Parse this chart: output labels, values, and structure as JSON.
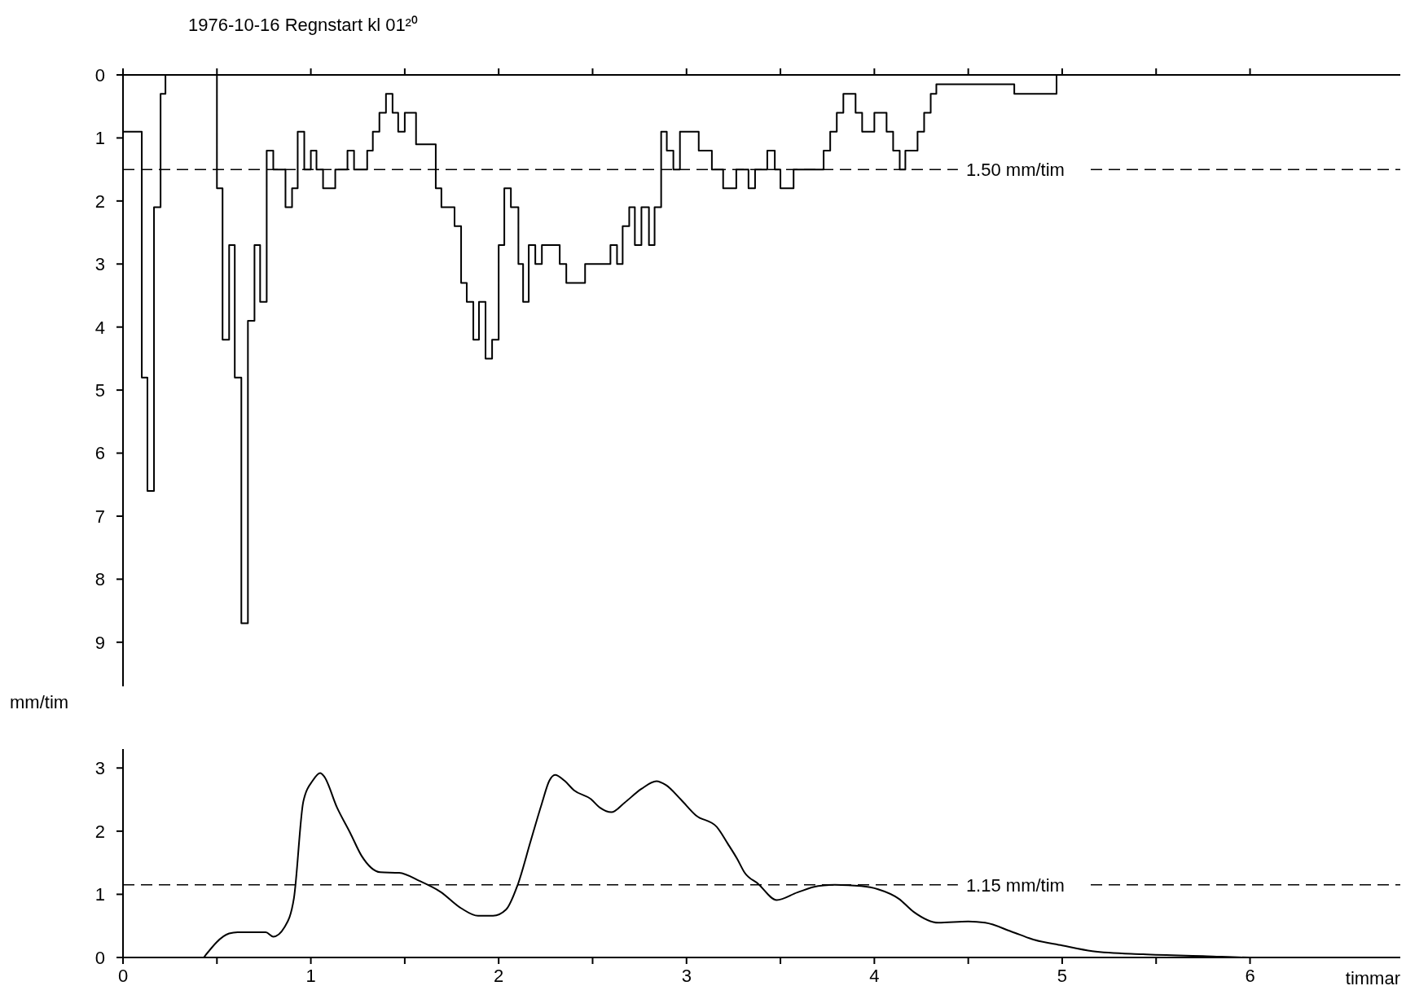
{
  "chart_data": [
    {
      "type": "step",
      "title": "1976-10-16   Regnstart   kl 01²⁰",
      "tick_labels": "y",
      "xlim": [
        0,
        6.8
      ],
      "xticks": [
        0,
        {
          "value": 0.5,
          "label": null
        },
        1,
        {
          "value": 1.5,
          "label": null
        },
        2,
        {
          "value": 2.5,
          "label": null
        },
        3,
        {
          "value": 3.5,
          "label": null
        },
        4,
        {
          "value": 4.5,
          "label": null
        },
        5,
        {
          "value": 5.5,
          "label": null
        },
        6
      ],
      "ylim": [
        9.7,
        0
      ],
      "yticks": [
        0,
        1,
        2,
        3,
        4,
        5,
        6,
        7,
        8,
        9
      ],
      "x": [
        0,
        0.1,
        0.13,
        0.165,
        0.2,
        0.226,
        0.5,
        0.53,
        0.565,
        0.595,
        0.63,
        0.665,
        0.7,
        0.73,
        0.765,
        0.8,
        0.865,
        0.9,
        0.93,
        0.965,
        1.0,
        1.03,
        1.065,
        1.13,
        1.195,
        1.23,
        1.3,
        1.33,
        1.365,
        1.4,
        1.435,
        1.465,
        1.5,
        1.56,
        1.665,
        1.695,
        1.765,
        1.8,
        1.83,
        1.865,
        1.895,
        1.93,
        1.965,
        2.0,
        2.03,
        2.065,
        2.105,
        2.13,
        2.16,
        2.195,
        2.23,
        2.325,
        2.36,
        2.46,
        2.595,
        2.63,
        2.66,
        2.695,
        2.725,
        2.76,
        2.8,
        2.83,
        2.865,
        2.895,
        2.93,
        2.965,
        3.065,
        3.135,
        3.195,
        3.265,
        3.33,
        3.365,
        3.43,
        3.47,
        3.5,
        3.57,
        3.73,
        3.765,
        3.8,
        3.835,
        3.9,
        3.935,
        4.0,
        4.065,
        4.1,
        4.135,
        4.165,
        4.23,
        4.265,
        4.3,
        4.33,
        4.745,
        4.97
      ],
      "series": [
        {
          "color": "#000000",
          "values": [
            0.9,
            4.8,
            6.6,
            2.1,
            0.3,
            0,
            1.8,
            4.2,
            2.7,
            4.8,
            8.7,
            3.9,
            2.7,
            3.6,
            1.2,
            1.5,
            2.1,
            1.8,
            0.9,
            1.5,
            1.2,
            1.5,
            1.8,
            1.5,
            1.2,
            1.5,
            1.2,
            0.9,
            0.6,
            0.3,
            0.6,
            0.9,
            0.6,
            1.1,
            1.8,
            2.1,
            2.4,
            3.3,
            3.6,
            4.2,
            3.6,
            4.5,
            4.2,
            2.7,
            1.8,
            2.1,
            3.0,
            3.6,
            2.7,
            3.0,
            2.7,
            3.0,
            3.3,
            3.0,
            2.7,
            3.0,
            2.4,
            2.1,
            2.7,
            2.1,
            2.7,
            2.1,
            0.9,
            1.2,
            1.5,
            0.9,
            1.2,
            1.5,
            1.8,
            1.5,
            1.8,
            1.5,
            1.2,
            1.5,
            1.8,
            1.5,
            1.2,
            0.9,
            0.6,
            0.3,
            0.6,
            0.9,
            0.6,
            0.9,
            1.2,
            1.5,
            1.2,
            0.9,
            0.6,
            0.3,
            0.15,
            0.3,
            0
          ]
        }
      ],
      "ref_lines": [
        {
          "axis": "y",
          "value": 1.5,
          "label": "1.50 mm/tim",
          "line_style": "dashed",
          "color": "#000000"
        }
      ]
    },
    {
      "type": "line",
      "ylabel": "mm/tim",
      "xlabel": "timmar",
      "xlim": [
        0,
        6.8
      ],
      "xticks": [
        0,
        {
          "value": 0.5,
          "label": null
        },
        1,
        {
          "value": 1.5,
          "label": null
        },
        2,
        {
          "value": 2.5,
          "label": null
        },
        3,
        {
          "value": 3.5,
          "label": null
        },
        4,
        {
          "value": 4.5,
          "label": null
        },
        5,
        {
          "value": 5.5,
          "label": null
        },
        6
      ],
      "ylim": [
        0,
        3.3
      ],
      "yticks": [
        0,
        1,
        2,
        3
      ],
      "x": [
        0.43,
        0.565,
        0.61,
        0.76,
        0.8,
        0.86,
        0.91,
        0.96,
        1.01,
        1.05,
        1.07,
        1.14,
        1.21,
        1.27,
        1.37,
        1.47,
        1.58,
        1.69,
        1.8,
        1.89,
        1.97,
        2.04,
        2.1,
        2.17,
        2.23,
        2.27,
        2.3,
        2.35,
        2.4,
        2.49,
        2.54,
        2.6,
        2.67,
        2.76,
        2.84,
        2.89,
        2.97,
        3.05,
        3.16,
        3.22,
        3.27,
        3.31,
        3.38,
        3.48,
        3.59,
        3.7,
        3.79,
        3.93,
        4.02,
        4.13,
        4.21,
        4.34,
        4.5,
        4.59,
        4.73,
        4.84,
        5.0,
        5.16,
        5.43,
        5.77,
        6.0,
        6.23
      ],
      "series": [
        {
          "color": "#000000",
          "values": [
            0,
            0.38,
            0.4,
            0.4,
            0.33,
            0.48,
            0.94,
            2.47,
            2.8,
            2.92,
            2.87,
            2.37,
            1.97,
            1.61,
            1.35,
            1.34,
            1.21,
            1.04,
            0.78,
            0.66,
            0.66,
            0.76,
            1.14,
            1.84,
            2.44,
            2.8,
            2.89,
            2.8,
            2.65,
            2.51,
            2.37,
            2.3,
            2.45,
            2.67,
            2.79,
            2.73,
            2.5,
            2.25,
            2.07,
            1.8,
            1.56,
            1.34,
            1.17,
            0.91,
            1.03,
            1.13,
            1.15,
            1.13,
            1.08,
            0.93,
            0.72,
            0.55,
            0.57,
            0.55,
            0.41,
            0.29,
            0.19,
            0.1,
            0.05,
            0.02,
            0,
            0
          ]
        }
      ],
      "ref_lines": [
        {
          "axis": "y",
          "value": 1.15,
          "label": "1.15 mm/tim",
          "line_style": "dashed",
          "color": "#000000"
        }
      ]
    }
  ]
}
